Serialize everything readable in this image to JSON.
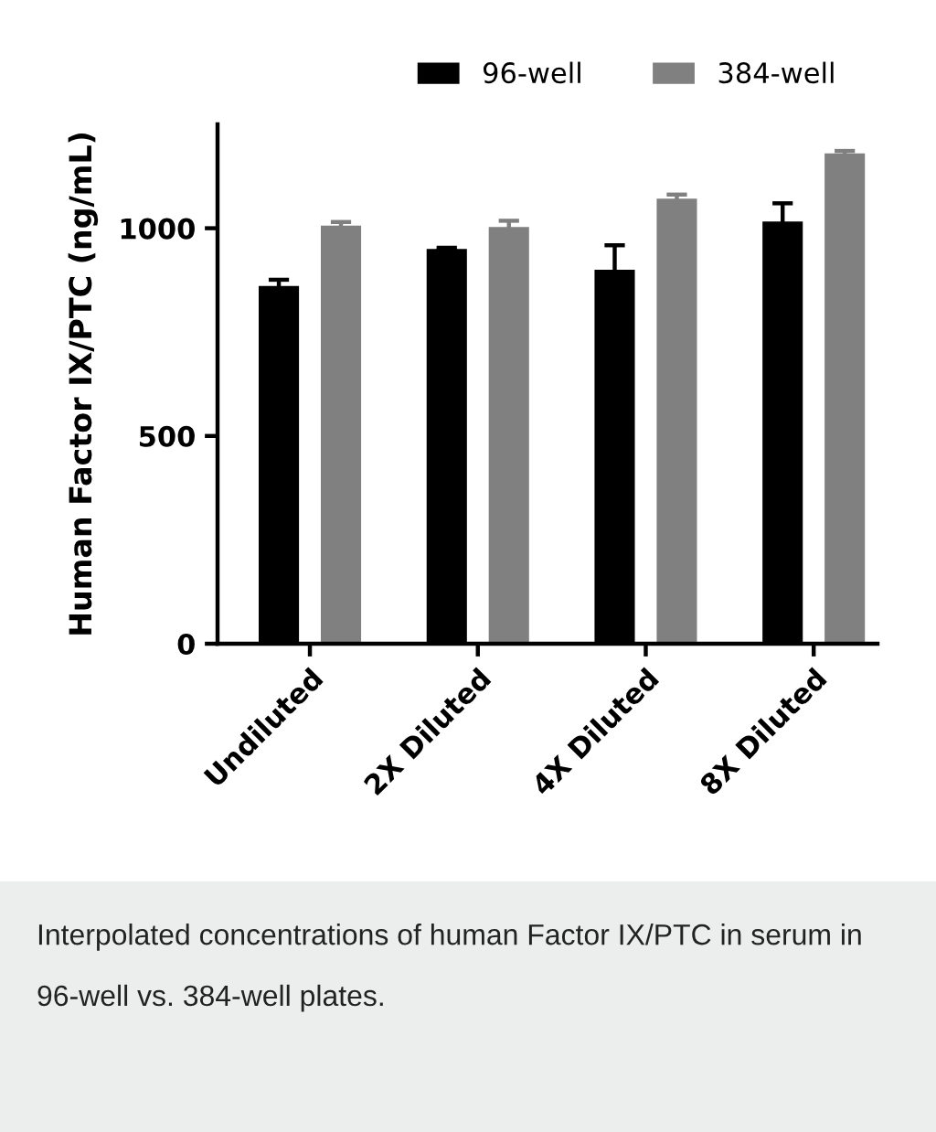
{
  "chart_data": {
    "type": "bar",
    "ylabel": "Human Factor IX/PTC (ng/mL)",
    "categories": [
      "Undiluted",
      "2X Diluted",
      "4X Diluted",
      "8X Diluted"
    ],
    "series": [
      {
        "name": "96-well",
        "color": "#000000",
        "values": [
          861,
          950,
          900,
          1016
        ],
        "errors": [
          15,
          3,
          59,
          44
        ]
      },
      {
        "name": "384-well",
        "color": "#808080",
        "values": [
          1006,
          1003,
          1071,
          1180
        ],
        "errors": [
          9,
          15,
          10,
          6
        ]
      }
    ],
    "ylim": [
      0,
      1250
    ],
    "yticks": [
      0,
      500,
      1000
    ],
    "grid": false,
    "legend": "top",
    "annotations": [
      "Interpolated concentrations of human Factor IX/PTC in serum in 96-well vs. 384-well plates."
    ]
  }
}
